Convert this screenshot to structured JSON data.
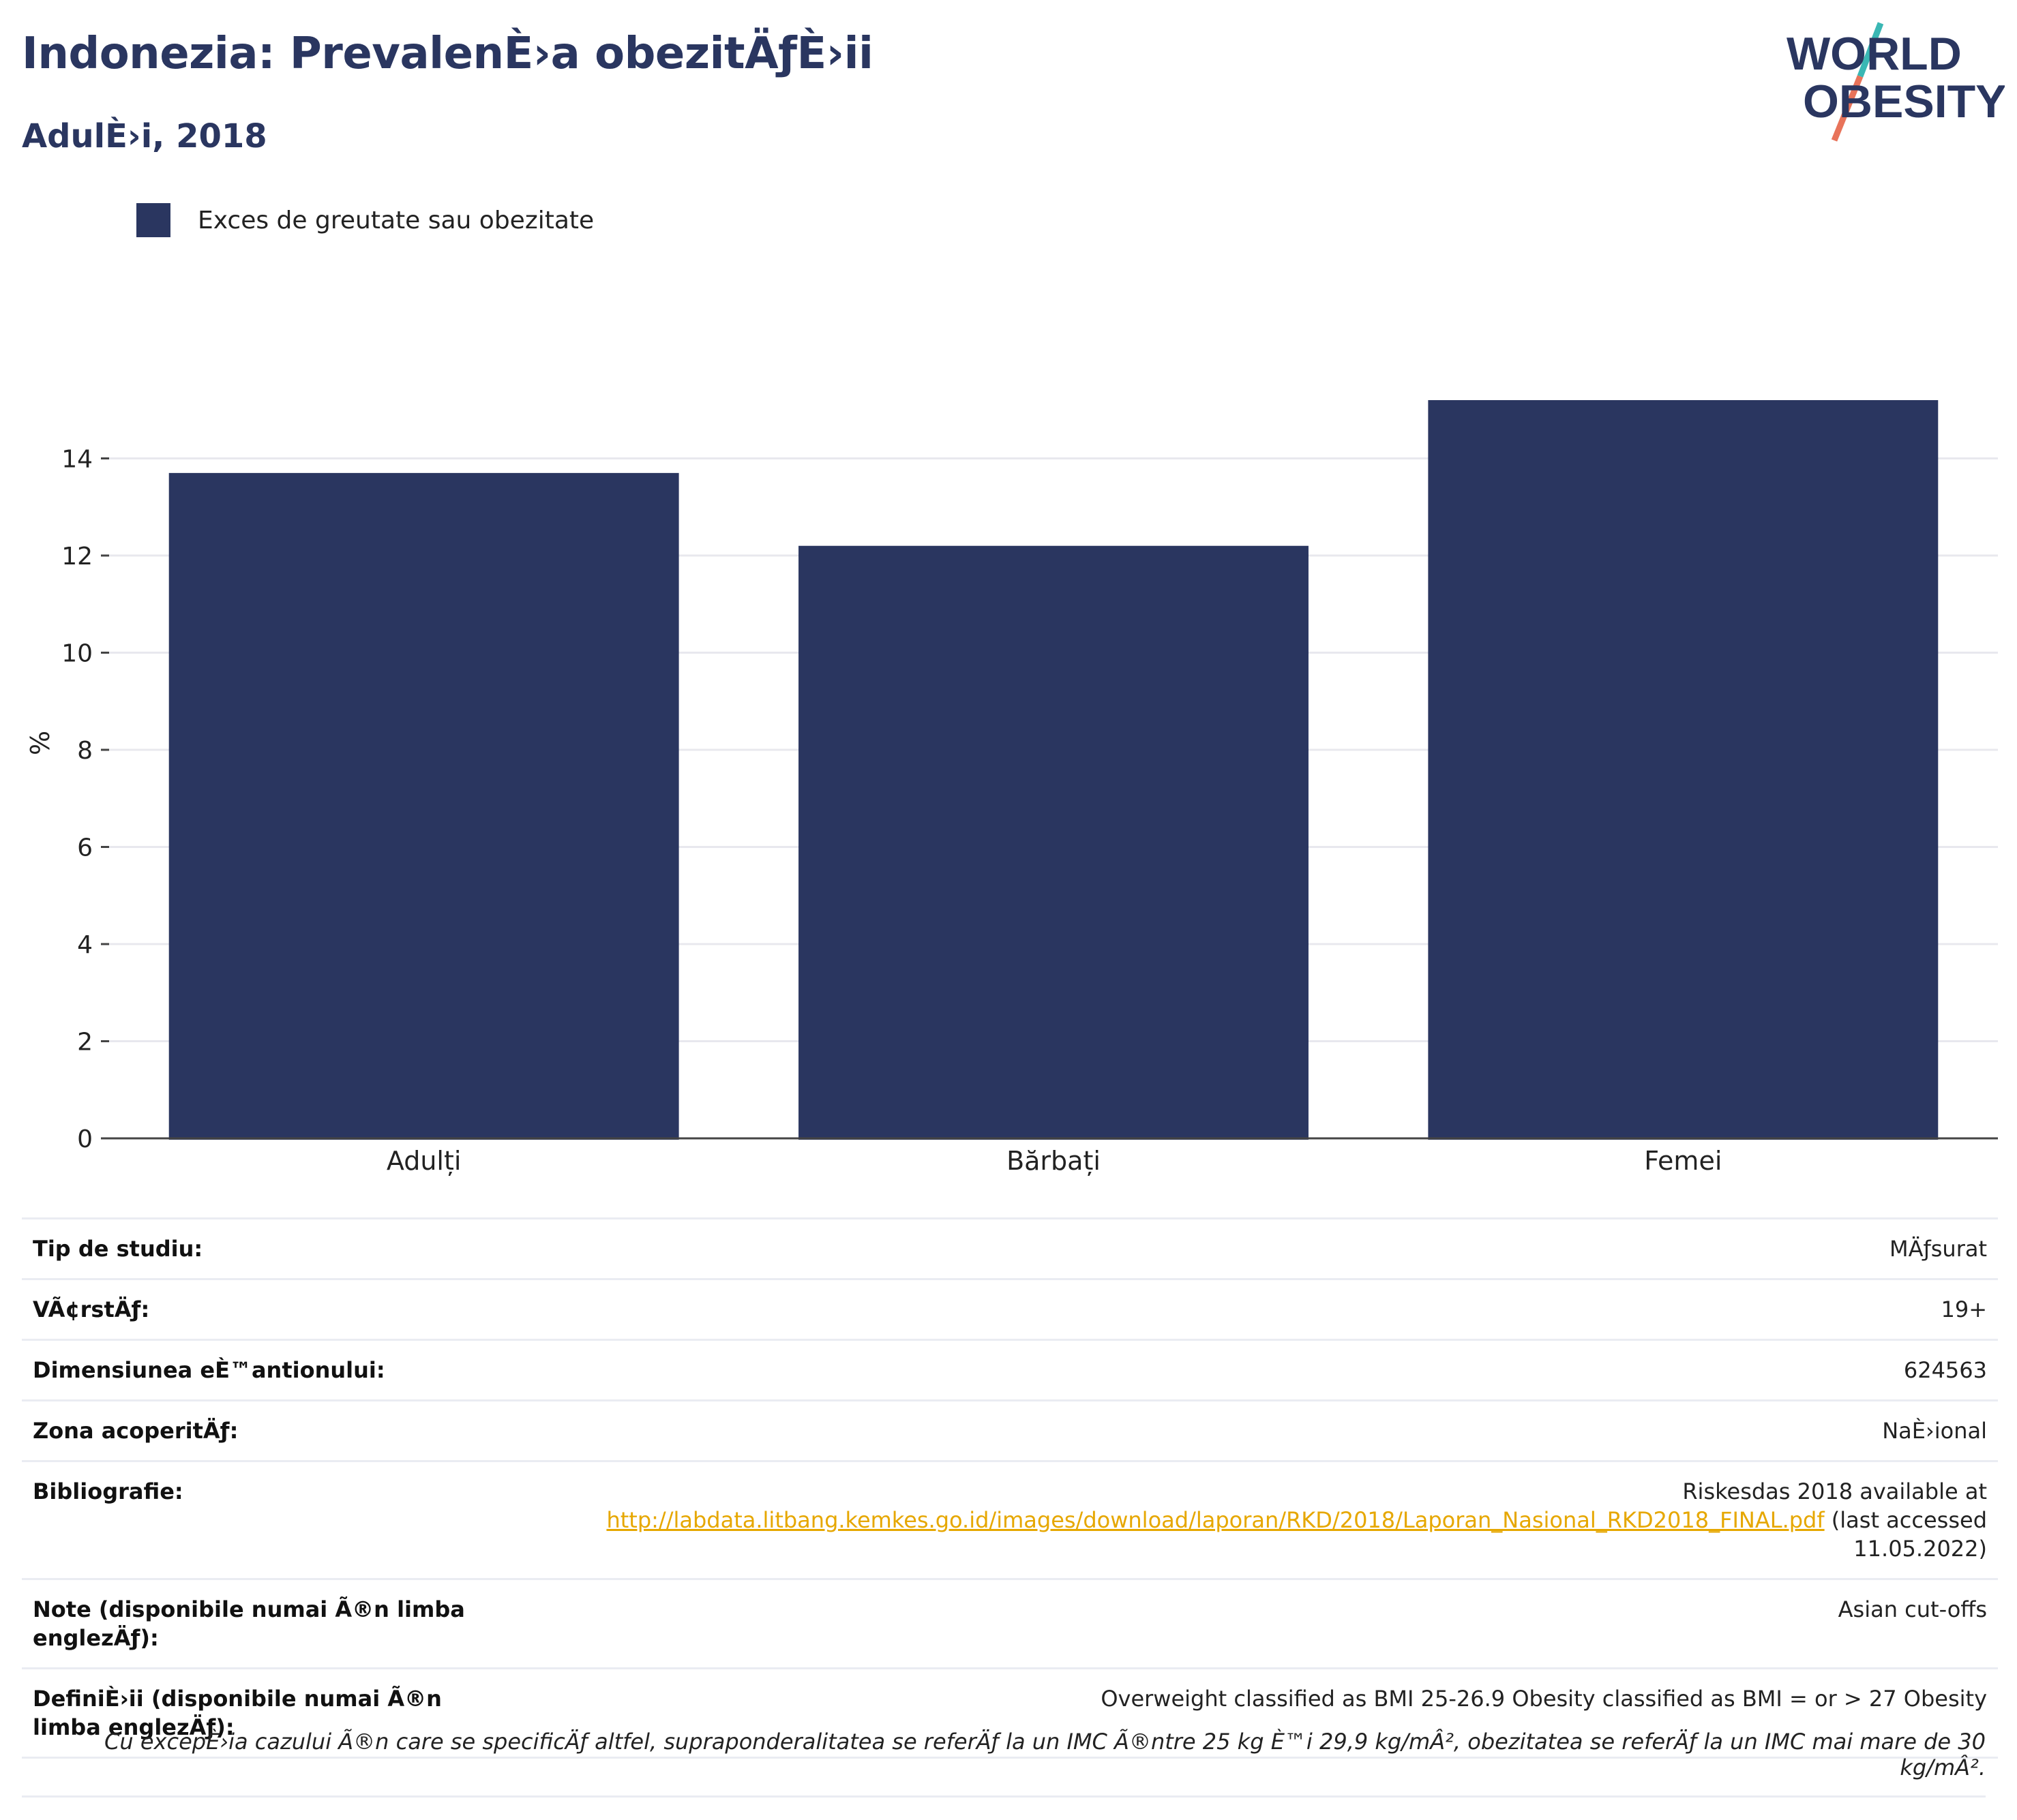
{
  "header": {
    "title": "Indonezia: PrevalenÈ›a obezitÄƒÈ›ii",
    "subtitle": "AdulÈ›i, 2018",
    "logo_line1": "WORLD",
    "logo_line2": "OBESITY"
  },
  "colors": {
    "bar": "#2a3660",
    "grid": "#e8e8ee",
    "axis": "#444444",
    "logo_text": "#2a3660",
    "logo_slash_top": "#3ab7b4",
    "logo_slash_bottom": "#e8735a",
    "link": "#e6a700"
  },
  "chart_data": {
    "type": "bar",
    "categories": [
      "Adulți",
      "Bărbați",
      "Femei"
    ],
    "series": [
      {
        "name": "Exces de greutate sau obezitate",
        "values": [
          13.7,
          12.2,
          15.2
        ]
      }
    ],
    "ylabel": "%",
    "ylim": [
      0,
      16
    ],
    "yticks": [
      0,
      2,
      4,
      6,
      8,
      10,
      12,
      14
    ],
    "grid": true,
    "legend_position": "top-left"
  },
  "info": [
    {
      "key": "Tip de studiu:",
      "value": "MÄƒsurat"
    },
    {
      "key": "VÃ¢rstÄƒ:",
      "value": "19+"
    },
    {
      "key": "Dimensiunea eÈ™antionului:",
      "value": "624563"
    },
    {
      "key": "Zona acoperitÄƒ:",
      "value": "NaÈ›ional"
    },
    {
      "key": "Bibliografie:",
      "value_prefix": "Riskesdas 2018 available at",
      "link": "http://labdata.litbang.kemkes.go.id/images/download/laporan/RKD/2018/Laporan_Nasional_RKD2018_FINAL.pdf",
      "value_suffix": "(last accessed 11.05.2022)"
    },
    {
      "key": "Note (disponibile numai Ã®n limba englezÄƒ):",
      "value": "Asian cut-offs"
    },
    {
      "key": "DefiniÈ›ii (disponibile numai Ã®n limba englezÄƒ):",
      "value": "Overweight classified as BMI 25-26.9 Obesity classified as BMI = or > 27 Obesity"
    }
  ],
  "footnote": "Cu excepÈ›ia cazului Ã®n care se specificÄƒ altfel, supraponderalitatea se referÄƒ la un IMC Ã®ntre 25 kg È™i 29,9 kg/mÂ², obezitatea se referÄƒ la un IMC mai mare de 30 kg/mÂ²."
}
